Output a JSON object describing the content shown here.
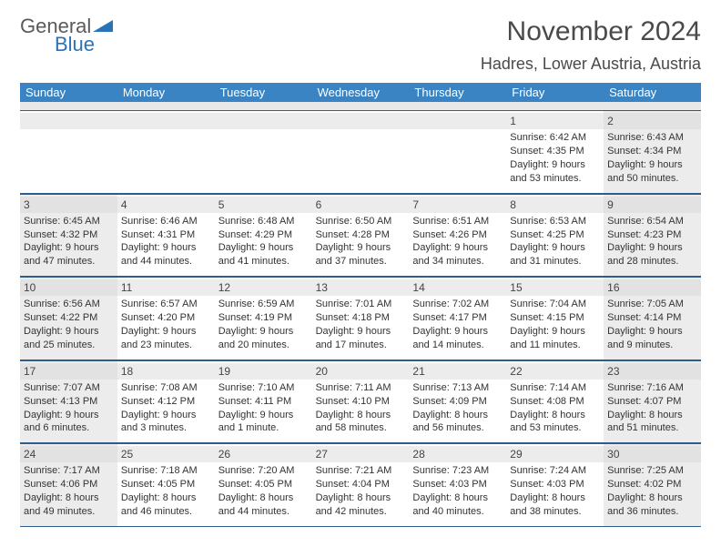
{
  "logo": {
    "text1": "General",
    "text2": "Blue"
  },
  "title": "November 2024",
  "location": "Hadres, Lower Austria, Austria",
  "colors": {
    "header_bg": "#3a84c4",
    "header_text": "#ffffff",
    "border": "#2f5d8a",
    "shade": "#ececec",
    "text": "#333333",
    "logo_gray": "#5a5a5a",
    "logo_blue": "#2a73b8"
  },
  "weekdays": [
    "Sunday",
    "Monday",
    "Tuesday",
    "Wednesday",
    "Thursday",
    "Friday",
    "Saturday"
  ],
  "weeks": [
    [
      {
        "empty": true
      },
      {
        "empty": true
      },
      {
        "empty": true
      },
      {
        "empty": true
      },
      {
        "empty": true
      },
      {
        "num": "1",
        "sunrise": "Sunrise: 6:42 AM",
        "sunset": "Sunset: 4:35 PM",
        "day1": "Daylight: 9 hours",
        "day2": "and 53 minutes."
      },
      {
        "num": "2",
        "shaded": true,
        "sunrise": "Sunrise: 6:43 AM",
        "sunset": "Sunset: 4:34 PM",
        "day1": "Daylight: 9 hours",
        "day2": "and 50 minutes."
      }
    ],
    [
      {
        "num": "3",
        "shaded": true,
        "sunrise": "Sunrise: 6:45 AM",
        "sunset": "Sunset: 4:32 PM",
        "day1": "Daylight: 9 hours",
        "day2": "and 47 minutes."
      },
      {
        "num": "4",
        "sunrise": "Sunrise: 6:46 AM",
        "sunset": "Sunset: 4:31 PM",
        "day1": "Daylight: 9 hours",
        "day2": "and 44 minutes."
      },
      {
        "num": "5",
        "sunrise": "Sunrise: 6:48 AM",
        "sunset": "Sunset: 4:29 PM",
        "day1": "Daylight: 9 hours",
        "day2": "and 41 minutes."
      },
      {
        "num": "6",
        "sunrise": "Sunrise: 6:50 AM",
        "sunset": "Sunset: 4:28 PM",
        "day1": "Daylight: 9 hours",
        "day2": "and 37 minutes."
      },
      {
        "num": "7",
        "sunrise": "Sunrise: 6:51 AM",
        "sunset": "Sunset: 4:26 PM",
        "day1": "Daylight: 9 hours",
        "day2": "and 34 minutes."
      },
      {
        "num": "8",
        "sunrise": "Sunrise: 6:53 AM",
        "sunset": "Sunset: 4:25 PM",
        "day1": "Daylight: 9 hours",
        "day2": "and 31 minutes."
      },
      {
        "num": "9",
        "shaded": true,
        "sunrise": "Sunrise: 6:54 AM",
        "sunset": "Sunset: 4:23 PM",
        "day1": "Daylight: 9 hours",
        "day2": "and 28 minutes."
      }
    ],
    [
      {
        "num": "10",
        "shaded": true,
        "sunrise": "Sunrise: 6:56 AM",
        "sunset": "Sunset: 4:22 PM",
        "day1": "Daylight: 9 hours",
        "day2": "and 25 minutes."
      },
      {
        "num": "11",
        "sunrise": "Sunrise: 6:57 AM",
        "sunset": "Sunset: 4:20 PM",
        "day1": "Daylight: 9 hours",
        "day2": "and 23 minutes."
      },
      {
        "num": "12",
        "sunrise": "Sunrise: 6:59 AM",
        "sunset": "Sunset: 4:19 PM",
        "day1": "Daylight: 9 hours",
        "day2": "and 20 minutes."
      },
      {
        "num": "13",
        "sunrise": "Sunrise: 7:01 AM",
        "sunset": "Sunset: 4:18 PM",
        "day1": "Daylight: 9 hours",
        "day2": "and 17 minutes."
      },
      {
        "num": "14",
        "sunrise": "Sunrise: 7:02 AM",
        "sunset": "Sunset: 4:17 PM",
        "day1": "Daylight: 9 hours",
        "day2": "and 14 minutes."
      },
      {
        "num": "15",
        "sunrise": "Sunrise: 7:04 AM",
        "sunset": "Sunset: 4:15 PM",
        "day1": "Daylight: 9 hours",
        "day2": "and 11 minutes."
      },
      {
        "num": "16",
        "shaded": true,
        "sunrise": "Sunrise: 7:05 AM",
        "sunset": "Sunset: 4:14 PM",
        "day1": "Daylight: 9 hours",
        "day2": "and 9 minutes."
      }
    ],
    [
      {
        "num": "17",
        "shaded": true,
        "sunrise": "Sunrise: 7:07 AM",
        "sunset": "Sunset: 4:13 PM",
        "day1": "Daylight: 9 hours",
        "day2": "and 6 minutes."
      },
      {
        "num": "18",
        "sunrise": "Sunrise: 7:08 AM",
        "sunset": "Sunset: 4:12 PM",
        "day1": "Daylight: 9 hours",
        "day2": "and 3 minutes."
      },
      {
        "num": "19",
        "sunrise": "Sunrise: 7:10 AM",
        "sunset": "Sunset: 4:11 PM",
        "day1": "Daylight: 9 hours",
        "day2": "and 1 minute."
      },
      {
        "num": "20",
        "sunrise": "Sunrise: 7:11 AM",
        "sunset": "Sunset: 4:10 PM",
        "day1": "Daylight: 8 hours",
        "day2": "and 58 minutes."
      },
      {
        "num": "21",
        "sunrise": "Sunrise: 7:13 AM",
        "sunset": "Sunset: 4:09 PM",
        "day1": "Daylight: 8 hours",
        "day2": "and 56 minutes."
      },
      {
        "num": "22",
        "sunrise": "Sunrise: 7:14 AM",
        "sunset": "Sunset: 4:08 PM",
        "day1": "Daylight: 8 hours",
        "day2": "and 53 minutes."
      },
      {
        "num": "23",
        "shaded": true,
        "sunrise": "Sunrise: 7:16 AM",
        "sunset": "Sunset: 4:07 PM",
        "day1": "Daylight: 8 hours",
        "day2": "and 51 minutes."
      }
    ],
    [
      {
        "num": "24",
        "shaded": true,
        "sunrise": "Sunrise: 7:17 AM",
        "sunset": "Sunset: 4:06 PM",
        "day1": "Daylight: 8 hours",
        "day2": "and 49 minutes."
      },
      {
        "num": "25",
        "sunrise": "Sunrise: 7:18 AM",
        "sunset": "Sunset: 4:05 PM",
        "day1": "Daylight: 8 hours",
        "day2": "and 46 minutes."
      },
      {
        "num": "26",
        "sunrise": "Sunrise: 7:20 AM",
        "sunset": "Sunset: 4:05 PM",
        "day1": "Daylight: 8 hours",
        "day2": "and 44 minutes."
      },
      {
        "num": "27",
        "sunrise": "Sunrise: 7:21 AM",
        "sunset": "Sunset: 4:04 PM",
        "day1": "Daylight: 8 hours",
        "day2": "and 42 minutes."
      },
      {
        "num": "28",
        "sunrise": "Sunrise: 7:23 AM",
        "sunset": "Sunset: 4:03 PM",
        "day1": "Daylight: 8 hours",
        "day2": "and 40 minutes."
      },
      {
        "num": "29",
        "sunrise": "Sunrise: 7:24 AM",
        "sunset": "Sunset: 4:03 PM",
        "day1": "Daylight: 8 hours",
        "day2": "and 38 minutes."
      },
      {
        "num": "30",
        "shaded": true,
        "sunrise": "Sunrise: 7:25 AM",
        "sunset": "Sunset: 4:02 PM",
        "day1": "Daylight: 8 hours",
        "day2": "and 36 minutes."
      }
    ]
  ]
}
